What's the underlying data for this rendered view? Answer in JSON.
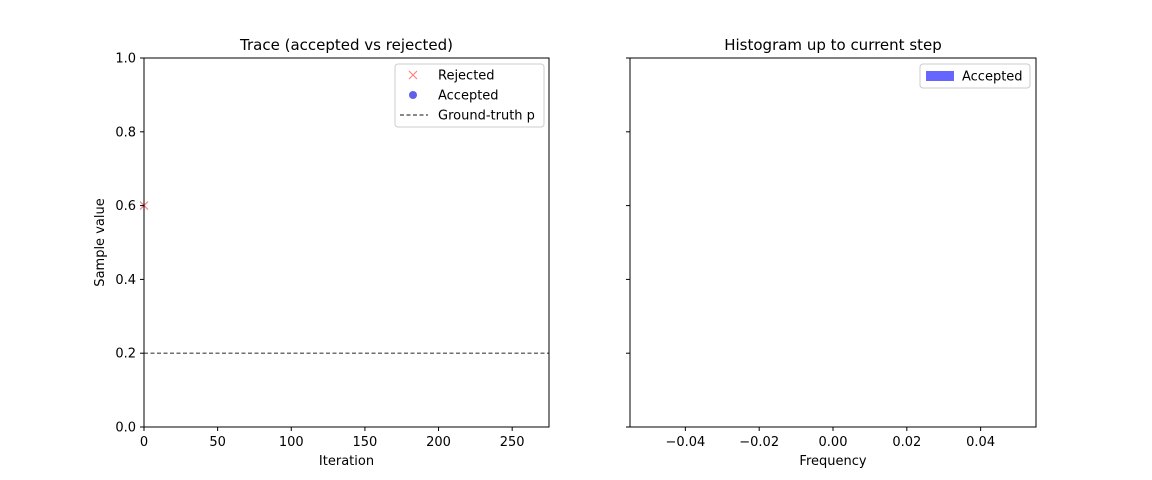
{
  "chart_data": [
    {
      "type": "scatter",
      "title": "Trace (accepted vs rejected)",
      "xlabel": "Iteration",
      "ylabel": "Sample value",
      "xlim": [
        0,
        275
      ],
      "ylim": [
        0,
        1.0
      ],
      "xticks": [
        0,
        50,
        100,
        150,
        200,
        250
      ],
      "xtick_labels": [
        "0",
        "50",
        "100",
        "150",
        "200",
        "250"
      ],
      "yticks": [
        0,
        0.2,
        0.4,
        0.6,
        0.8,
        1.0
      ],
      "ytick_labels": [
        "0.0",
        "0.2",
        "0.4",
        "0.6",
        "0.8",
        "1.0"
      ],
      "grid": false,
      "legend_position": "upper right",
      "series": [
        {
          "name": "Rejected",
          "marker": "x",
          "color": "#ff8080",
          "x": [
            0
          ],
          "y": [
            0.6
          ]
        },
        {
          "name": "Accepted",
          "marker": "o",
          "color": "#5050e6",
          "x": [],
          "y": []
        }
      ],
      "reference_lines": [
        {
          "name": "Ground-truth p",
          "orientation": "horizontal",
          "value": 0.2,
          "style": "dashed",
          "color": "#404040"
        }
      ]
    },
    {
      "type": "bar",
      "orientation": "horizontal",
      "title": "Histogram up to current step",
      "xlabel": "Frequency",
      "xlim": [
        -0.055,
        0.055
      ],
      "xticks": [
        -0.04,
        -0.02,
        0.0,
        0.02,
        0.04
      ],
      "xtick_labels": [
        "−0.04",
        "−0.02",
        "0.00",
        "0.02",
        "0.04"
      ],
      "ylim": [
        0,
        1.0
      ],
      "shared_y_with_first": true,
      "grid": false,
      "legend_position": "upper right",
      "series": [
        {
          "name": "Accepted",
          "color": "#6666ff",
          "bins": [],
          "counts": []
        }
      ]
    }
  ]
}
